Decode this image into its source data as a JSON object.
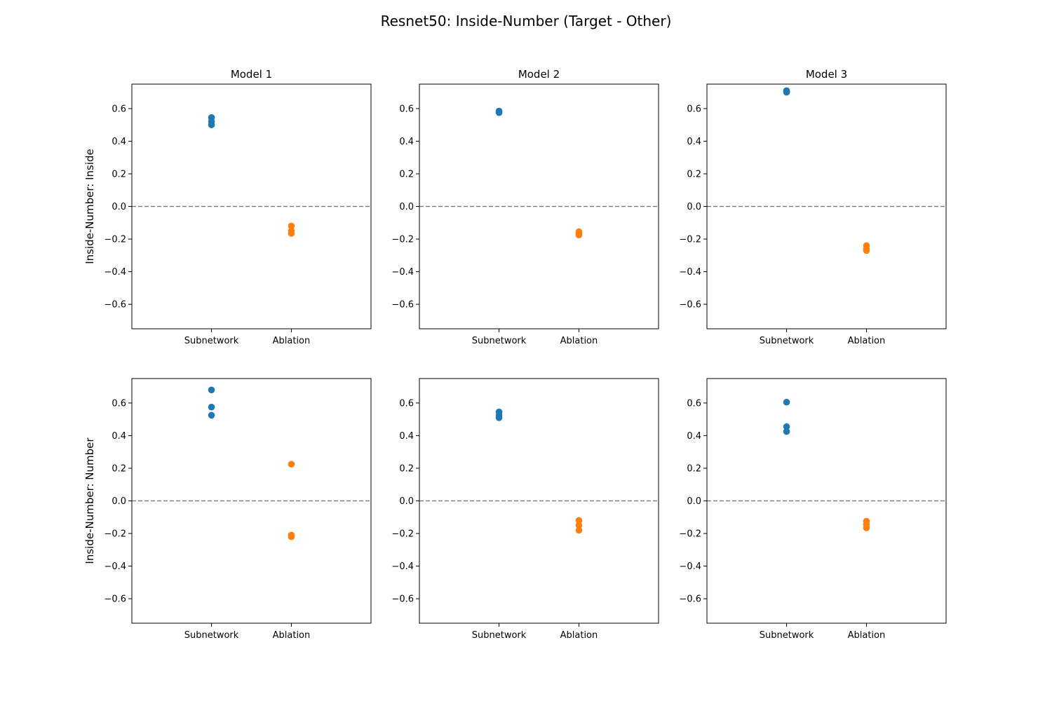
{
  "figure": {
    "title": "Resnet50: Inside-Number (Target - Other)"
  },
  "chart_data": {
    "type": "scatter",
    "categories": [
      "Subnetwork",
      "Ablation"
    ],
    "yticks": [
      -0.6,
      -0.4,
      -0.2,
      0.0,
      0.2,
      0.4,
      0.6
    ],
    "ylim": [
      -0.75,
      0.75
    ],
    "reference_line": {
      "y": 0.0,
      "style": "dashed",
      "color": "#808080"
    },
    "colors": {
      "Subnetwork": "#1f77b4",
      "Ablation": "#ff7f0e"
    },
    "column_titles": [
      "Model 1",
      "Model 2",
      "Model 3"
    ],
    "row_labels": [
      "Inside-Number: Inside",
      "Inside-Number: Number"
    ],
    "panels": [
      {
        "row": 0,
        "col": 0,
        "title": "Model 1",
        "ylabel": "Inside-Number: Inside",
        "points": {
          "Subnetwork": [
            0.545,
            0.52,
            0.5
          ],
          "Ablation": [
            -0.12,
            -0.15,
            -0.165
          ]
        }
      },
      {
        "row": 0,
        "col": 1,
        "title": "Model 2",
        "ylabel": "",
        "points": {
          "Subnetwork": [
            0.585,
            0.58,
            0.575
          ],
          "Ablation": [
            -0.155,
            -0.165,
            -0.175
          ]
        }
      },
      {
        "row": 0,
        "col": 2,
        "title": "Model 3",
        "ylabel": "",
        "points": {
          "Subnetwork": [
            0.71,
            0.705,
            0.7
          ],
          "Ablation": [
            -0.24,
            -0.26,
            -0.27
          ]
        }
      },
      {
        "row": 1,
        "col": 0,
        "title": "",
        "ylabel": "Inside-Number: Number",
        "points": {
          "Subnetwork": [
            0.68,
            0.575,
            0.525
          ],
          "Ablation": [
            0.225,
            -0.21,
            -0.22
          ]
        }
      },
      {
        "row": 1,
        "col": 1,
        "title": "",
        "ylabel": "",
        "points": {
          "Subnetwork": [
            0.545,
            0.525,
            0.51
          ],
          "Ablation": [
            -0.12,
            -0.15,
            -0.18
          ]
        }
      },
      {
        "row": 1,
        "col": 2,
        "title": "",
        "ylabel": "",
        "points": {
          "Subnetwork": [
            0.605,
            0.455,
            0.425
          ],
          "Ablation": [
            -0.125,
            -0.145,
            -0.165
          ]
        }
      }
    ]
  }
}
